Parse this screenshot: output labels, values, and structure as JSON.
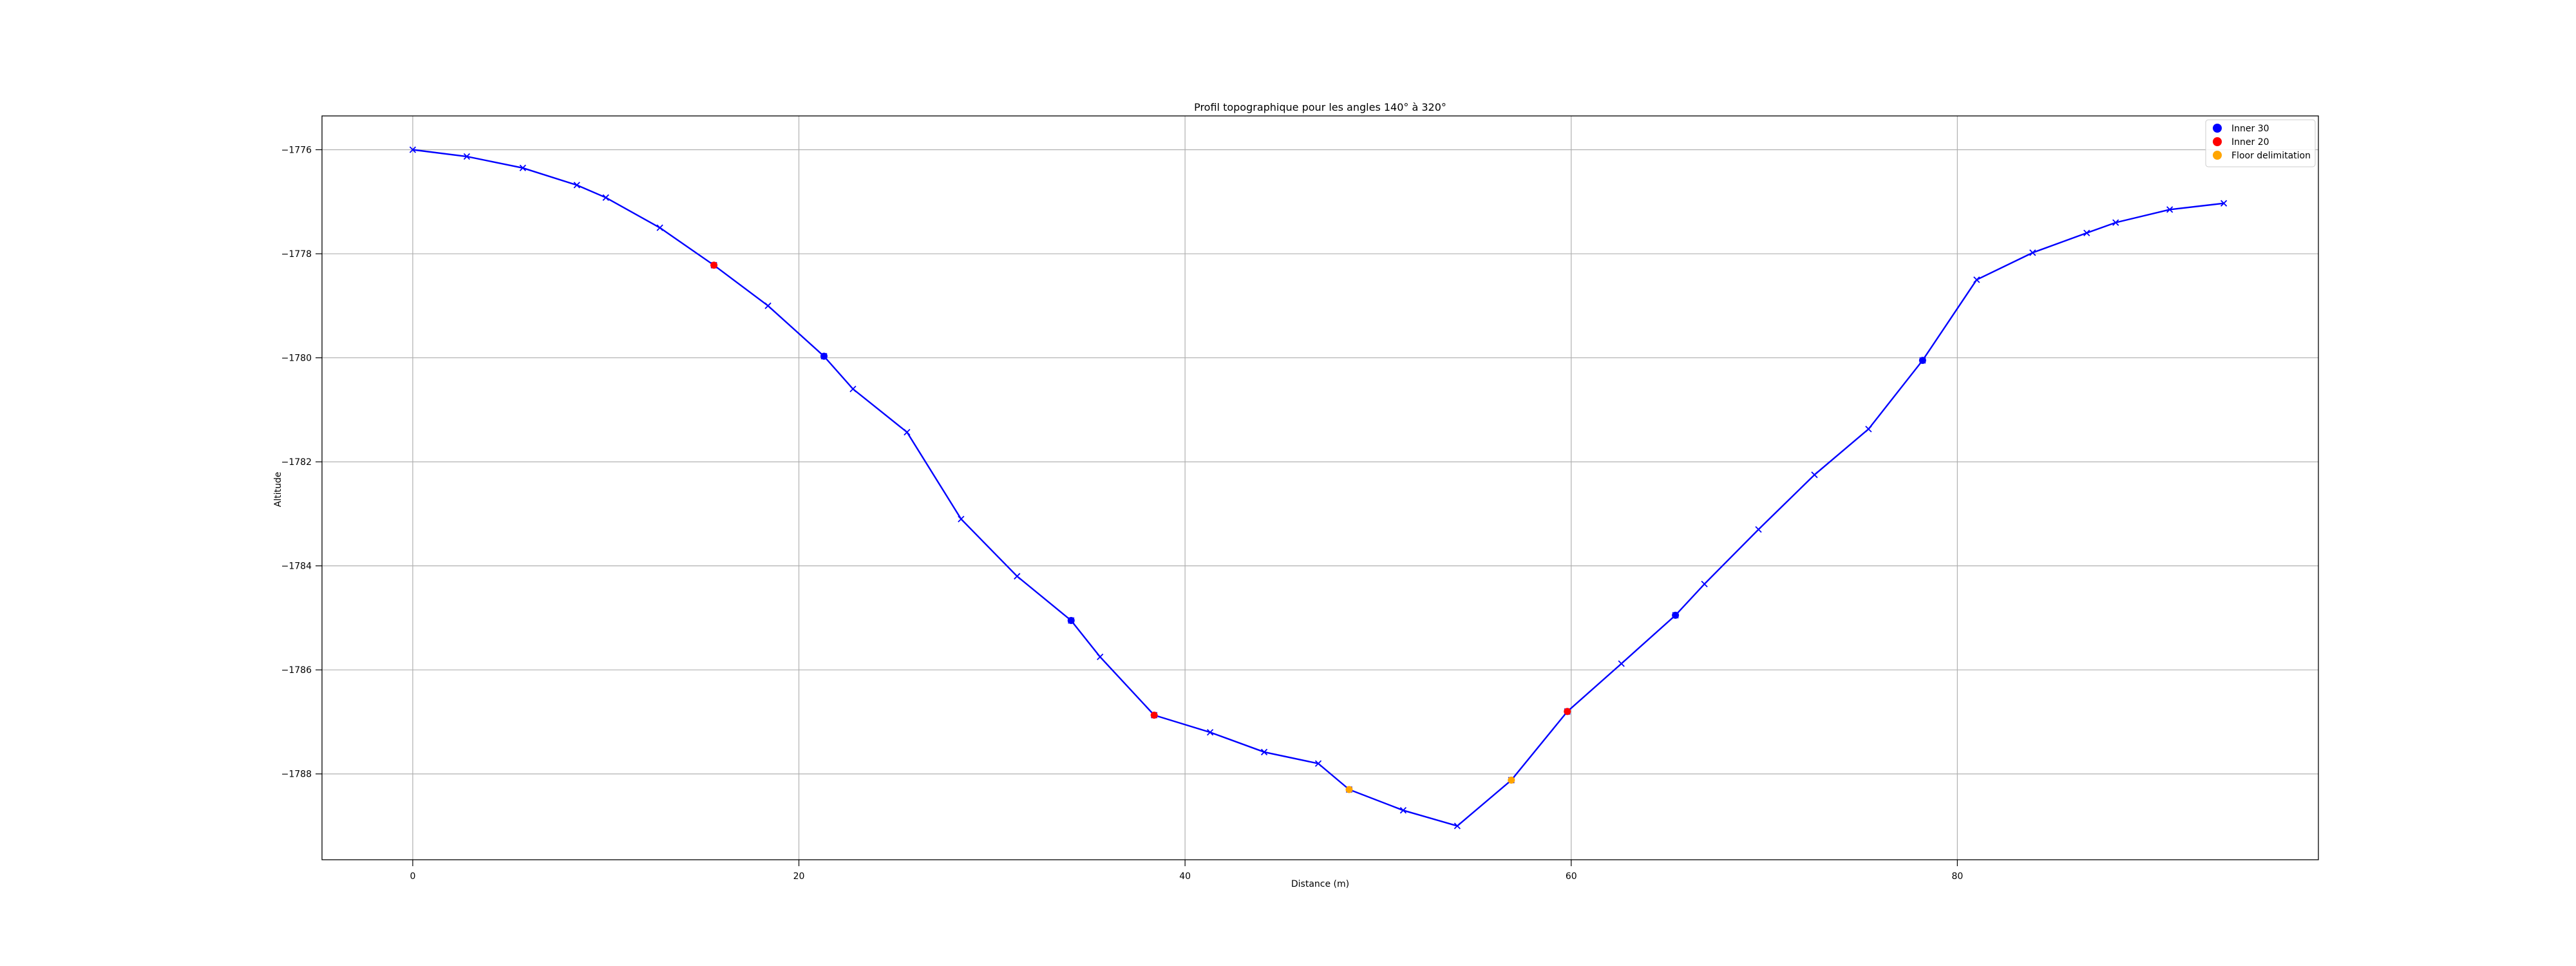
{
  "chart_data": {
    "type": "line",
    "title": "Profil topographique pour les angles 140° à 320°",
    "xlabel": "Distance (m)",
    "ylabel": "Altitude",
    "xlim": [
      -4.7,
      98.7
    ],
    "ylim": [
      -1789.65,
      -1775.35
    ],
    "xticks": [
      0,
      20,
      40,
      60,
      80
    ],
    "yticks": [
      -1776,
      -1778,
      -1780,
      -1782,
      -1784,
      -1786,
      -1788
    ],
    "xtick_labels": [
      "0",
      "20",
      "40",
      "60",
      "80"
    ],
    "ytick_labels": [
      "−1776",
      "−1778",
      "−1780",
      "−1782",
      "−1784",
      "−1786",
      "−1788"
    ],
    "grid": true,
    "legend_position": "top-right",
    "profile": {
      "color": "#0000ff",
      "marker": "x",
      "x": [
        0,
        2.8,
        5.7,
        8.5,
        10.0,
        12.8,
        15.6,
        18.4,
        21.3,
        22.8,
        25.6,
        28.4,
        31.3,
        34.1,
        35.6,
        38.4,
        41.3,
        44.1,
        46.9,
        48.5,
        51.3,
        54.1,
        56.9,
        59.8,
        62.6,
        65.4,
        66.9,
        69.7,
        72.6,
        75.4,
        78.2,
        81.0,
        83.9,
        86.7,
        88.2,
        91.0,
        93.8
      ],
      "y": [
        -1776.0,
        -1776.13,
        -1776.35,
        -1776.68,
        -1776.92,
        -1777.5,
        -1778.22,
        -1779.0,
        -1779.97,
        -1780.6,
        -1781.43,
        -1783.1,
        -1784.2,
        -1785.05,
        -1785.75,
        -1786.87,
        -1787.2,
        -1787.58,
        -1787.8,
        -1788.3,
        -1788.7,
        -1789.0,
        -1788.12,
        -1786.8,
        -1785.88,
        -1784.95,
        -1784.35,
        -1783.3,
        -1782.25,
        -1781.37,
        -1780.05,
        -1778.5,
        -1777.98,
        -1777.6,
        -1777.4,
        -1777.15,
        -1777.03
      ]
    },
    "series": [
      {
        "name": "Inner 30",
        "color": "#0000ff",
        "x": [
          21.3,
          34.1,
          65.4,
          78.2
        ],
        "y": [
          -1779.97,
          -1785.05,
          -1784.95,
          -1780.05
        ]
      },
      {
        "name": "Inner 20",
        "color": "#ff0000",
        "x": [
          15.6,
          38.4,
          59.8
        ],
        "y": [
          -1778.22,
          -1786.87,
          -1786.8
        ]
      },
      {
        "name": "Floor delimitation",
        "color": "#ffa500",
        "x": [
          48.5,
          56.9
        ],
        "y": [
          -1788.3,
          -1788.12
        ]
      }
    ]
  }
}
